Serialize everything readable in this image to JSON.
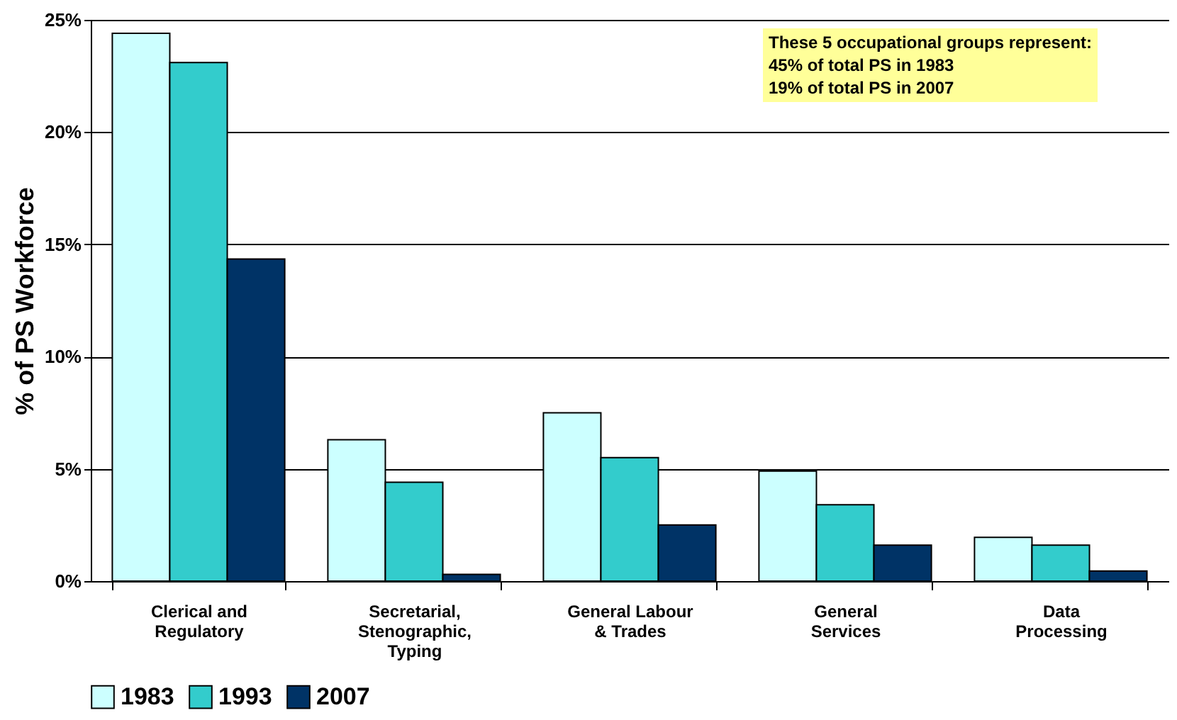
{
  "chart_data": {
    "type": "bar",
    "ylabel": "% of PS Workforce",
    "categories": [
      "Clerical and Regulatory",
      "Secretarial, Stenographic, Typing",
      "General Labour & Trades",
      "General Services",
      "Data Processing"
    ],
    "series": [
      {
        "name": "1983",
        "color": "#ccffff",
        "values": [
          24.4,
          6.3,
          7.5,
          4.9,
          1.95
        ]
      },
      {
        "name": "1993",
        "color": "#33cccc",
        "values": [
          23.1,
          4.4,
          5.5,
          3.4,
          1.6
        ]
      },
      {
        "name": "2007",
        "color": "#003366",
        "values": [
          14.35,
          0.3,
          2.5,
          1.6,
          0.45
        ]
      }
    ],
    "ylim": [
      0,
      25
    ],
    "yticks": [
      {
        "value": 0,
        "label": "0%"
      },
      {
        "value": 5,
        "label": "5%"
      },
      {
        "value": 10,
        "label": "10%"
      },
      {
        "value": 15,
        "label": "15%"
      },
      {
        "value": 20,
        "label": "20%"
      },
      {
        "value": 25,
        "label": "25%"
      }
    ],
    "grid": "y",
    "legend": "bottom",
    "annotations": [
      "These 5 occupational groups represent:",
      "45% of total PS in 1983",
      "19% of total PS in 2007"
    ]
  }
}
